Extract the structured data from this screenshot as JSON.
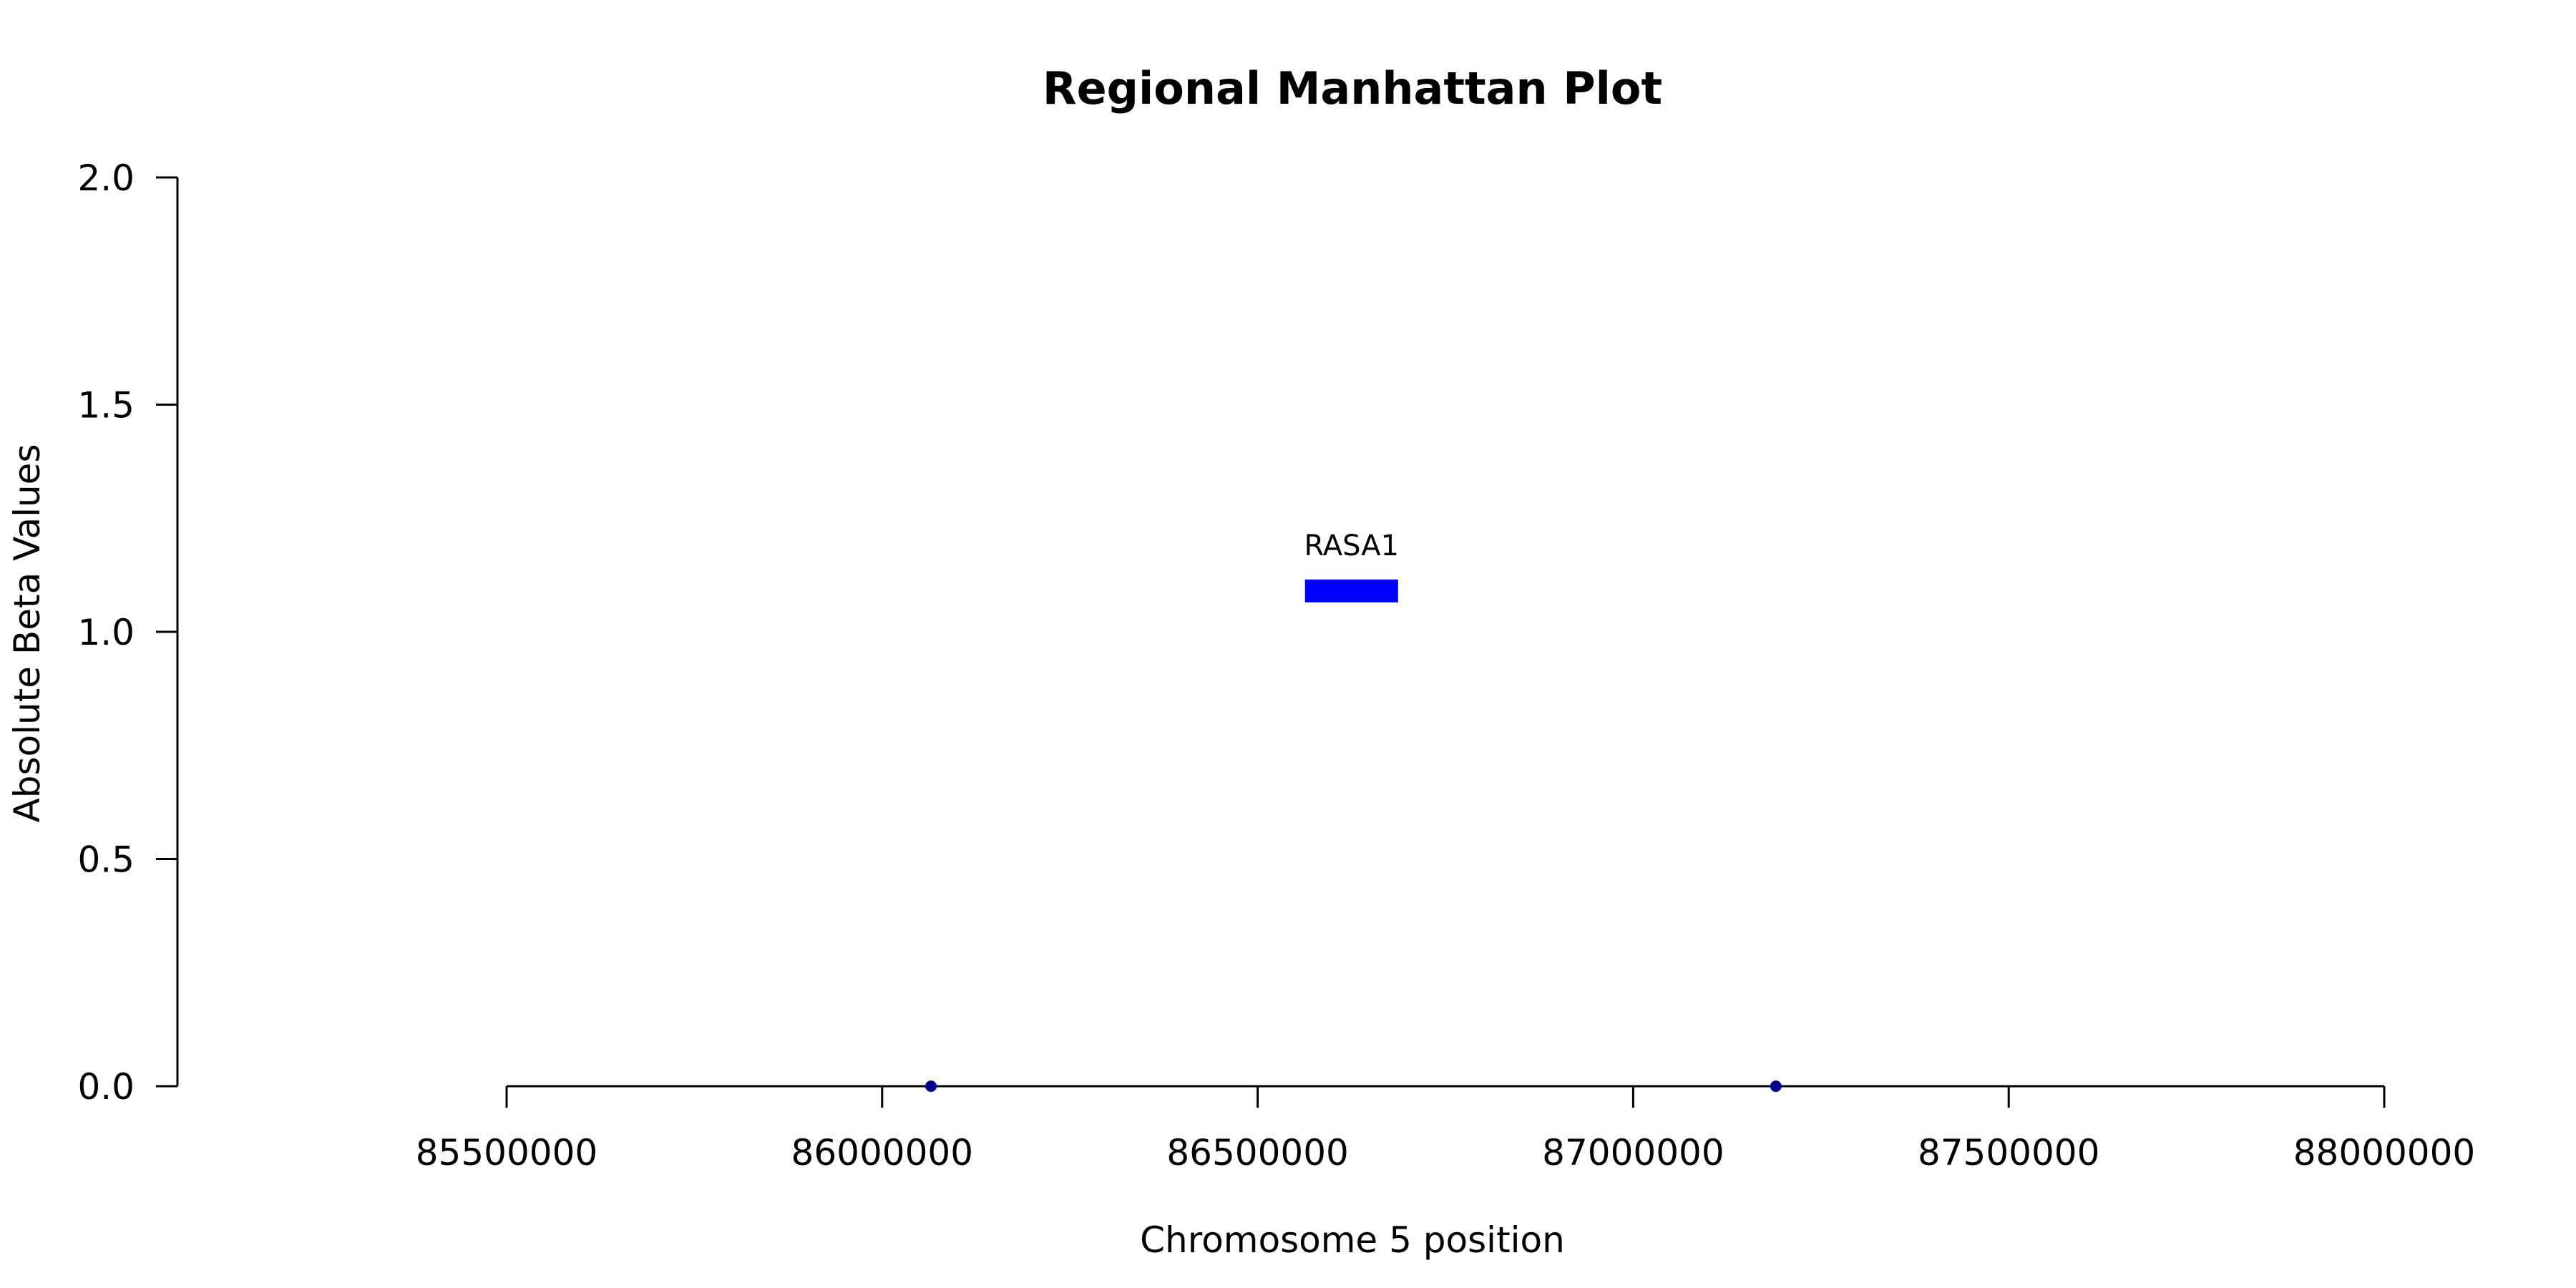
{
  "chart_data": {
    "type": "scatter",
    "title": "Regional Manhattan Plot",
    "xlabel": "Chromosome 5 position",
    "ylabel": "Absolute Beta Values",
    "xlim": [
      85500000,
      88000000
    ],
    "ylim": [
      0,
      2
    ],
    "x_ticks": [
      "85500000",
      "86000000",
      "86500000",
      "87000000",
      "87500000",
      "88000000"
    ],
    "y_ticks": [
      "0.0",
      "0.5",
      "1.0",
      "1.5",
      "2.0"
    ],
    "points": [
      {
        "x": 86065000,
        "y": 0.0
      },
      {
        "x": 87190000,
        "y": 0.0
      }
    ],
    "point_color": "#00008b",
    "genes": [
      {
        "name": "RASA1",
        "start": 86563000,
        "end": 86687000,
        "y": 1.09,
        "color": "#0000ff"
      }
    ],
    "grid": false,
    "legend": "none"
  }
}
